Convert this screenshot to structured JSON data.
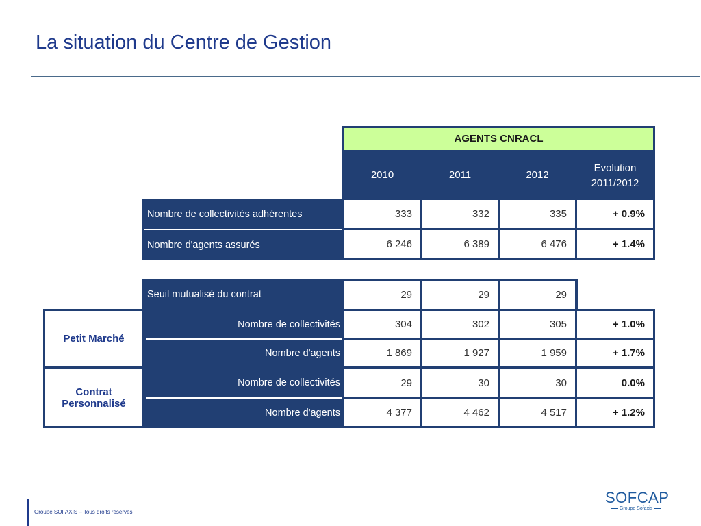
{
  "title": "La situation du Centre de Gestion",
  "colors": {
    "navy": "#213f73",
    "header_green": "#ccff99",
    "title_blue": "#1f3a8c"
  },
  "table_header": {
    "group": "AGENTS CNRACL",
    "years": [
      "2010",
      "2011",
      "2012"
    ],
    "evolution_line1": "Evolution",
    "evolution_line2": "2011/2012"
  },
  "table1": [
    {
      "label": "Nombre de collectivités adhérentes",
      "values": [
        "333",
        "332",
        "335"
      ],
      "evolution": "+ 0.9%"
    },
    {
      "label": "Nombre d'agents assurés",
      "values": [
        "6 246",
        "6 389",
        "6 476"
      ],
      "evolution": "+ 1.4%"
    }
  ],
  "threshold": {
    "label": "Seuil mutualisé du contrat",
    "values": [
      "29",
      "29",
      "29"
    ]
  },
  "petit_marche": {
    "group": "Petit Marché",
    "rows": [
      {
        "label": "Nombre de collectivités",
        "values": [
          "304",
          "302",
          "305"
        ],
        "evolution": "+ 1.0%"
      },
      {
        "label": "Nombre d'agents",
        "values": [
          "1 869",
          "1 927",
          "1 959"
        ],
        "evolution": "+ 1.7%"
      }
    ]
  },
  "contrat_personnalise": {
    "group": "Contrat Personnalisé",
    "rows": [
      {
        "label": "Nombre de collectivités",
        "values": [
          "29",
          "30",
          "30"
        ],
        "evolution": "0.0%"
      },
      {
        "label": "Nombre d'agents",
        "values": [
          "4 377",
          "4 462",
          "4 517"
        ],
        "evolution": "+ 1.2%"
      }
    ]
  },
  "footer": {
    "text": "Groupe SOFAXIS – Tous droits réservés"
  },
  "logo": {
    "main": "SOFCAP",
    "sub": "Groupe Sofaxis"
  }
}
